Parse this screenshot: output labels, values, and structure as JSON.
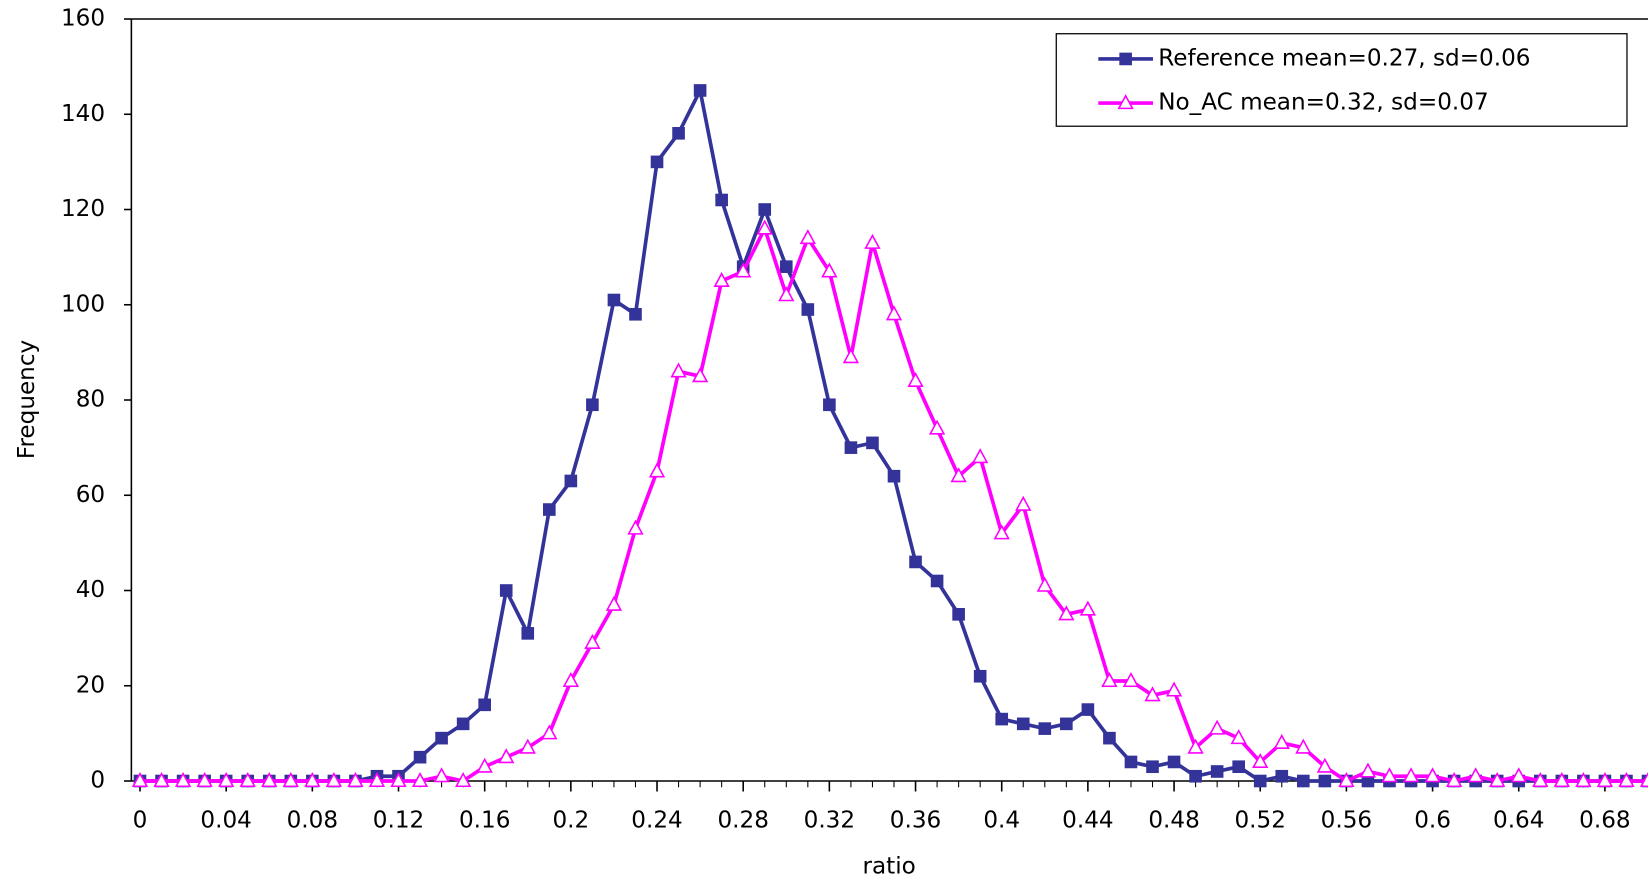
{
  "chart_data": {
    "type": "line",
    "x_label": "ratio",
    "y_label": "Frequency",
    "x": [
      0,
      0.01,
      0.02,
      0.03,
      0.04,
      0.05,
      0.06,
      0.07,
      0.08,
      0.09,
      0.1,
      0.11,
      0.12,
      0.13,
      0.14,
      0.15,
      0.16,
      0.17,
      0.18,
      0.19,
      0.2,
      0.21,
      0.22,
      0.23,
      0.24,
      0.25,
      0.26,
      0.27,
      0.28,
      0.29,
      0.3,
      0.31,
      0.32,
      0.33,
      0.34,
      0.35,
      0.36,
      0.37,
      0.38,
      0.39,
      0.4,
      0.41,
      0.42,
      0.43,
      0.44,
      0.45,
      0.46,
      0.47,
      0.48,
      0.49,
      0.5,
      0.51,
      0.52,
      0.53,
      0.54,
      0.55,
      0.56,
      0.57,
      0.58,
      0.59,
      0.6,
      0.61,
      0.62,
      0.63,
      0.64,
      0.65,
      0.66,
      0.67,
      0.68,
      0.69,
      0.7
    ],
    "series": [
      {
        "name": "Reference mean=0.27, sd=0.06",
        "color": "#333399",
        "marker": "square",
        "values": [
          0,
          0,
          0,
          0,
          0,
          0,
          0,
          0,
          0,
          0,
          0,
          1,
          1,
          5,
          9,
          12,
          16,
          40,
          31,
          57,
          63,
          79,
          101,
          98,
          130,
          136,
          145,
          122,
          108,
          120,
          108,
          99,
          79,
          70,
          71,
          64,
          46,
          42,
          35,
          22,
          13,
          12,
          11,
          12,
          15,
          9,
          4,
          3,
          4,
          1,
          2,
          3,
          0,
          1,
          0,
          0,
          0,
          0,
          0,
          0,
          0,
          0,
          0,
          0,
          0,
          0,
          0,
          0,
          0,
          0,
          0
        ]
      },
      {
        "name": "No_AC mean=0.32, sd=0.07",
        "color": "#ff00ff",
        "marker": "triangle",
        "values": [
          0,
          0,
          0,
          0,
          0,
          0,
          0,
          0,
          0,
          0,
          0,
          0,
          0,
          0,
          1,
          0,
          3,
          5,
          7,
          10,
          21,
          29,
          37,
          53,
          65,
          86,
          85,
          105,
          107,
          116,
          102,
          114,
          107,
          89,
          113,
          98,
          84,
          74,
          64,
          68,
          52,
          58,
          41,
          35,
          36,
          21,
          21,
          18,
          19,
          7,
          11,
          9,
          4,
          8,
          7,
          3,
          0,
          2,
          1,
          1,
          1,
          0,
          1,
          0,
          1,
          0,
          0,
          0,
          0,
          0,
          0
        ]
      }
    ],
    "xlim": [
      -0.004,
      0.7
    ],
    "xticks": [
      0,
      0.04,
      0.08,
      0.12,
      0.16,
      0.2,
      0.24,
      0.28,
      0.32,
      0.36,
      0.4,
      0.44,
      0.48,
      0.52,
      0.56,
      0.6,
      0.64,
      0.68
    ],
    "ylim": [
      0,
      160
    ],
    "yticks": [
      0,
      20,
      40,
      60,
      80,
      100,
      120,
      140,
      160
    ],
    "grid": false,
    "legend": "upper right"
  }
}
